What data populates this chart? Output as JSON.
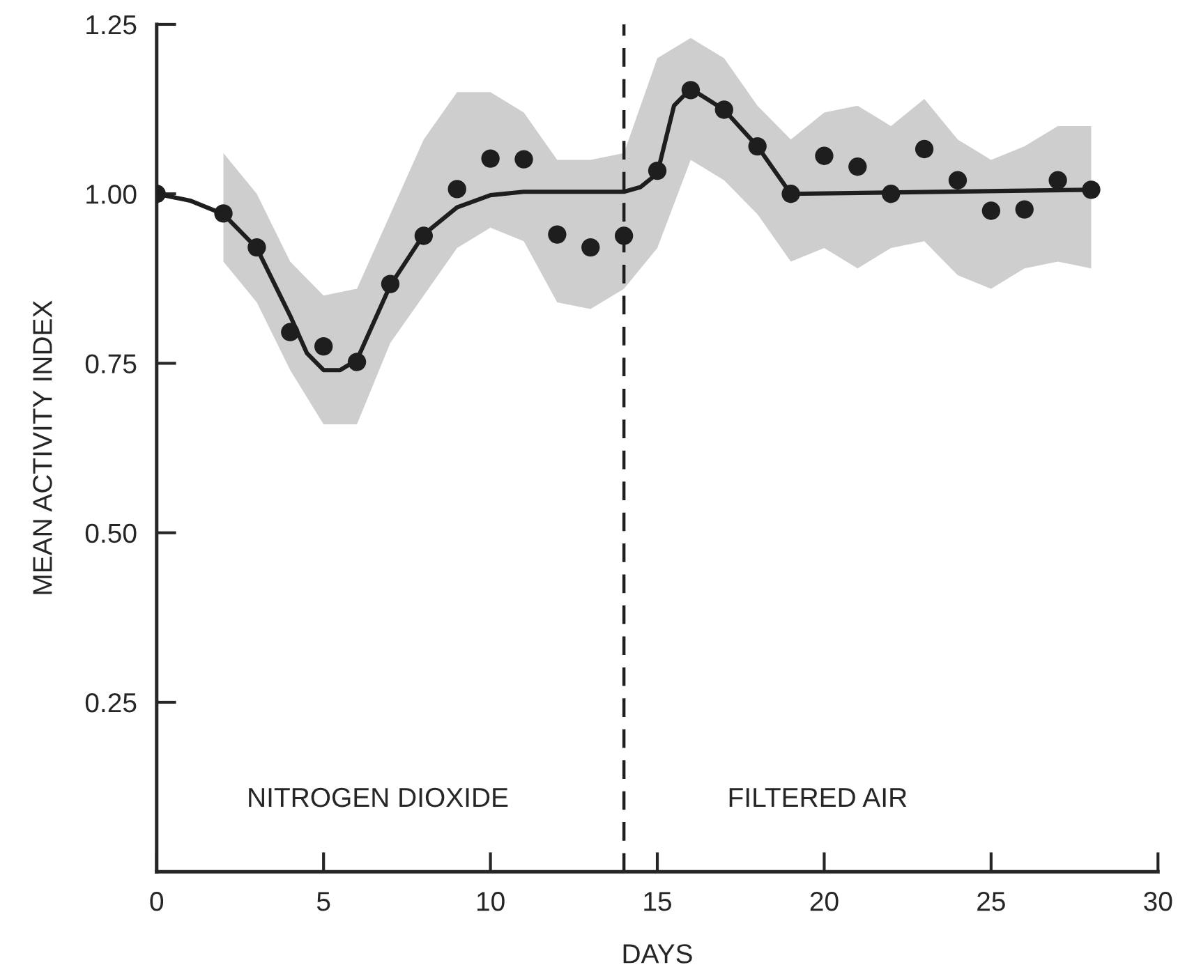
{
  "chart_data": {
    "type": "scatter",
    "xlabel": "DAYS",
    "ylabel": "MEAN ACTIVITY INDEX",
    "xlim": [
      0,
      30
    ],
    "xticks": [
      0,
      5,
      10,
      15,
      20,
      25,
      30
    ],
    "ylim": [
      0,
      1.25
    ],
    "yticks": [
      {
        "value": 0.25,
        "label": "0.25"
      },
      {
        "value": 0.5,
        "label": "0.50"
      },
      {
        "value": 0.75,
        "label": "0.75"
      },
      {
        "value": 1.0,
        "label": "1.00"
      },
      {
        "value": 1.25,
        "label": "1.25"
      }
    ],
    "grid": false,
    "legend": false,
    "marker": "circle",
    "series": [
      {
        "type": "line",
        "color": "#1e1e1e",
        "x": [
          0,
          1,
          2,
          3,
          4,
          4.5,
          5,
          5.5,
          6,
          7,
          8,
          9,
          10,
          11,
          12,
          13,
          14,
          14.5,
          15,
          15.5,
          16,
          17,
          18,
          19,
          28
        ],
        "values": [
          1.0,
          0.99,
          0.97,
          0.92,
          0.82,
          0.765,
          0.74,
          0.74,
          0.755,
          0.865,
          0.94,
          0.98,
          0.998,
          1.003,
          1.003,
          1.003,
          1.003,
          1.01,
          1.03,
          1.13,
          1.155,
          1.124,
          1.07,
          1.0,
          1.006
        ],
        "marker": "none"
      },
      {
        "color": "#1e1e1e",
        "lower": [
          null,
          0.9,
          0.84,
          0.74,
          0.66,
          0.66,
          0.78,
          0.85,
          0.92,
          0.95,
          0.93,
          0.84,
          0.83,
          0.86,
          0.92,
          1.05,
          1.02,
          0.97,
          0.9,
          0.92,
          0.89,
          0.92,
          0.93,
          0.88,
          0.86,
          0.89,
          0.9,
          0.89
        ],
        "upper": [
          null,
          1.06,
          1.0,
          0.9,
          0.85,
          0.86,
          0.97,
          1.08,
          1.15,
          1.15,
          1.12,
          1.05,
          1.05,
          1.06,
          1.2,
          1.23,
          1.2,
          1.13,
          1.08,
          1.12,
          1.13,
          1.1,
          1.14,
          1.08,
          1.05,
          1.07,
          1.1,
          1.1
        ],
        "x": [
          0,
          2,
          3,
          4,
          5,
          6,
          7,
          8,
          9,
          10,
          11,
          12,
          13,
          14,
          15,
          16,
          17,
          18,
          19,
          20,
          21,
          22,
          23,
          24,
          25,
          26,
          27,
          28
        ],
        "values": [
          1.0,
          0.971,
          0.921,
          0.796,
          0.775,
          0.752,
          0.867,
          0.938,
          1.007,
          1.052,
          1.051,
          0.94,
          0.921,
          0.938,
          1.034,
          1.153,
          1.124,
          1.07,
          1.0,
          1.056,
          1.04,
          1.0,
          1.066,
          1.02,
          0.975,
          0.977,
          1.02,
          1.006
        ]
      }
    ],
    "ref_lines": [
      {
        "axis": "x",
        "value": 14,
        "color": "#1e1e1e",
        "line_style": "dashed"
      }
    ],
    "annotations": [
      "NITROGEN DIOXIDE",
      "FILTERED AIR"
    ]
  }
}
